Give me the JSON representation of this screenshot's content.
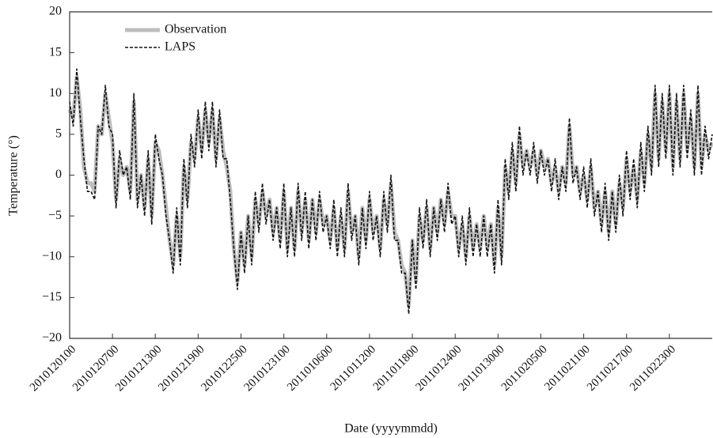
{
  "chart_data": {
    "type": "line",
    "xlabel": "Date (yyyymmdd)",
    "ylabel": "Temperature (°)",
    "categories": [
      "2010120100",
      null,
      null,
      null,
      null,
      null,
      null,
      null,
      null,
      null,
      null,
      null,
      "2010120700",
      null,
      null,
      null,
      null,
      null,
      null,
      null,
      null,
      null,
      null,
      null,
      "2010121300",
      null,
      null,
      null,
      null,
      null,
      null,
      null,
      null,
      null,
      null,
      null,
      "2010121900",
      null,
      null,
      null,
      null,
      null,
      null,
      null,
      null,
      null,
      null,
      null,
      "2010122500",
      null,
      null,
      null,
      null,
      null,
      null,
      null,
      null,
      null,
      null,
      null,
      "2010123100",
      null,
      null,
      null,
      null,
      null,
      null,
      null,
      null,
      null,
      null,
      null,
      "2011010600",
      null,
      null,
      null,
      null,
      null,
      null,
      null,
      null,
      null,
      null,
      null,
      "2011011200",
      null,
      null,
      null,
      null,
      null,
      null,
      null,
      null,
      null,
      null,
      null,
      "2011011800",
      null,
      null,
      null,
      null,
      null,
      null,
      null,
      null,
      null,
      null,
      null,
      "2011012400",
      null,
      null,
      null,
      null,
      null,
      null,
      null,
      null,
      null,
      null,
      null,
      "2011013000",
      null,
      null,
      null,
      null,
      null,
      null,
      null,
      null,
      null,
      null,
      null,
      "2011020500",
      null,
      null,
      null,
      null,
      null,
      null,
      null,
      null,
      null,
      null,
      null,
      "2011021100",
      null,
      null,
      null,
      null,
      null,
      null,
      null,
      null,
      null,
      null,
      null,
      "2011021700",
      null,
      null,
      null,
      null,
      null,
      null,
      null,
      null,
      null,
      null,
      null,
      "2011022300",
      null,
      null,
      null,
      null,
      null,
      null,
      null,
      null,
      null,
      null,
      null,
      null
    ],
    "series": [
      {
        "name": "Observation",
        "color": "#bdbdbd",
        "style": "solid",
        "values": [
          8,
          7,
          12,
          8,
          1,
          -1,
          -1,
          -2,
          6,
          5,
          10,
          7,
          4,
          -3,
          2,
          0,
          1,
          -2,
          9,
          -3,
          0,
          -4,
          2,
          -5,
          4,
          3,
          0,
          -4,
          -8,
          -11,
          -5,
          -10,
          1,
          -3,
          4,
          2,
          7,
          3,
          8,
          4,
          8,
          2,
          7,
          3,
          1,
          -2,
          -9,
          -13,
          -7,
          -11,
          -5,
          -10,
          -3,
          -6,
          -2,
          -5,
          -3,
          -7,
          -4,
          -8,
          -2,
          -9,
          -4,
          -9,
          -2,
          -7,
          -3,
          -8,
          -3,
          -7,
          -3,
          -6,
          -5,
          -8,
          -4,
          -9,
          -5,
          -9,
          -2,
          -7,
          -5,
          -10,
          -4,
          -8,
          -3,
          -7,
          -5,
          -9,
          -3,
          -6,
          -1,
          -7,
          -8,
          -11,
          -12,
          -16,
          -8,
          -13,
          -5,
          -8,
          -4,
          -9,
          -4,
          -7,
          -3,
          -6,
          -2,
          -5,
          -5,
          -9,
          -6,
          -10,
          -5,
          -9,
          -6,
          -9,
          -5,
          -9,
          -6,
          -11,
          -4,
          -10,
          1,
          -2,
          3,
          -1,
          5,
          1,
          3,
          1,
          3,
          0,
          3,
          1,
          2,
          -1,
          1,
          -2,
          1,
          -1,
          6,
          0,
          1,
          -2,
          0,
          -3,
          1,
          -4,
          -2,
          -6,
          -2,
          -7,
          -2,
          -6,
          -1,
          -4,
          2,
          -2,
          1,
          -3,
          3,
          -1,
          5,
          1,
          10,
          2,
          9,
          3,
          10,
          1,
          9,
          2,
          10,
          3,
          7,
          1,
          10,
          1,
          5,
          3,
          4
        ]
      },
      {
        "name": "LAPS",
        "color": "#111111",
        "style": "dashed",
        "values": [
          9,
          6,
          13,
          7,
          2,
          -2,
          -2,
          -3,
          6,
          5,
          11,
          6,
          5,
          -4,
          3,
          0,
          1,
          -3,
          10,
          -4,
          0,
          -5,
          3,
          -6,
          5,
          2,
          0,
          -5,
          -8,
          -12,
          -4,
          -11,
          2,
          -4,
          5,
          1,
          8,
          2,
          9,
          3,
          9,
          1,
          8,
          2,
          2,
          -3,
          -9,
          -14,
          -7,
          -12,
          -5,
          -11,
          -2,
          -7,
          -1,
          -6,
          -3,
          -8,
          -4,
          -9,
          -1,
          -10,
          -4,
          -10,
          -1,
          -8,
          -2,
          -9,
          -3,
          -8,
          -2,
          -7,
          -5,
          -9,
          -3,
          -10,
          -4,
          -10,
          -1,
          -8,
          -5,
          -11,
          -4,
          -9,
          -2,
          -8,
          -5,
          -10,
          -2,
          -7,
          0,
          -8,
          -8,
          -12,
          -12,
          -17,
          -8,
          -14,
          -4,
          -9,
          -3,
          -10,
          -4,
          -8,
          -3,
          -7,
          -1,
          -6,
          -5,
          -10,
          -5,
          -11,
          -4,
          -10,
          -6,
          -10,
          -5,
          -10,
          -6,
          -12,
          -3,
          -11,
          2,
          -3,
          4,
          -2,
          6,
          0,
          3,
          0,
          4,
          -1,
          3,
          0,
          2,
          -2,
          2,
          -3,
          1,
          -2,
          7,
          -1,
          1,
          -3,
          1,
          -4,
          2,
          -5,
          -2,
          -7,
          -1,
          -8,
          -2,
          -7,
          0,
          -5,
          3,
          -3,
          2,
          -4,
          4,
          -2,
          6,
          0,
          11,
          1,
          10,
          2,
          11,
          0,
          10,
          1,
          11,
          2,
          8,
          0,
          11,
          0,
          6,
          2,
          5
        ]
      }
    ],
    "ylim": [
      -20,
      20
    ],
    "yticks": [
      {
        "value": -20,
        "label": "−20"
      },
      {
        "value": -15,
        "label": "−15"
      },
      {
        "value": -10,
        "label": "−10"
      },
      {
        "value": -5,
        "label": "−5"
      },
      0,
      5,
      10,
      15,
      20
    ],
    "legend": "upper left"
  }
}
